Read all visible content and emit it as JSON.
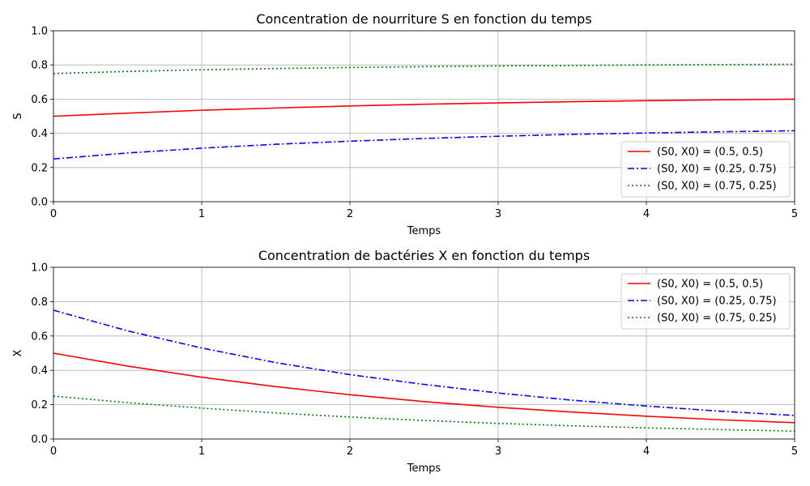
{
  "chart_data": [
    {
      "type": "line",
      "title": "Concentration de nourriture S en fonction du temps",
      "xlabel": "Temps",
      "ylabel": "S",
      "xlim": [
        0,
        5
      ],
      "ylim": [
        0,
        1
      ],
      "xticks": [
        0,
        1,
        2,
        3,
        4,
        5
      ],
      "yticks": [
        0.0,
        0.2,
        0.4,
        0.6,
        0.8,
        1.0
      ],
      "xtick_labels": [
        "0",
        "1",
        "2",
        "3",
        "4",
        "5"
      ],
      "ytick_labels": [
        "0.0",
        "0.2",
        "0.4",
        "0.6",
        "0.8",
        "1.0"
      ],
      "grid": true,
      "legend_position": "lower-right",
      "x": [
        0,
        0.5,
        1,
        1.5,
        2,
        2.5,
        3,
        3.5,
        4,
        4.5,
        5
      ],
      "series": [
        {
          "name": "(S0, X0) = (0.5, 0.5)",
          "color": "#ff0000",
          "dash": "solid",
          "values": [
            0.5,
            0.518,
            0.535,
            0.548,
            0.56,
            0.57,
            0.578,
            0.585,
            0.591,
            0.596,
            0.6
          ]
        },
        {
          "name": "(S0, X0) = (0.25, 0.75)",
          "color": "#0000ff",
          "dash": "dashdot",
          "values": [
            0.25,
            0.285,
            0.313,
            0.336,
            0.354,
            0.37,
            0.383,
            0.394,
            0.402,
            0.409,
            0.415
          ]
        },
        {
          "name": "(S0, X0) = (0.75, 0.25)",
          "color": "#008000",
          "dash": "dotted",
          "values": [
            0.75,
            0.762,
            0.772,
            0.779,
            0.785,
            0.79,
            0.794,
            0.797,
            0.8,
            0.802,
            0.804
          ]
        }
      ]
    },
    {
      "type": "line",
      "title": "Concentration de bactéries X en fonction du temps",
      "xlabel": "Temps",
      "ylabel": "X",
      "xlim": [
        0,
        5
      ],
      "ylim": [
        0,
        1
      ],
      "xticks": [
        0,
        1,
        2,
        3,
        4,
        5
      ],
      "yticks": [
        0.0,
        0.2,
        0.4,
        0.6,
        0.8,
        1.0
      ],
      "xtick_labels": [
        "0",
        "1",
        "2",
        "3",
        "4",
        "5"
      ],
      "ytick_labels": [
        "0.0",
        "0.2",
        "0.4",
        "0.6",
        "0.8",
        "1.0"
      ],
      "grid": true,
      "legend_position": "upper-right",
      "x": [
        0,
        0.5,
        1,
        1.5,
        2,
        2.5,
        3,
        3.5,
        4,
        4.5,
        5
      ],
      "series": [
        {
          "name": "(S0, X0) = (0.5, 0.5)",
          "color": "#ff0000",
          "dash": "solid",
          "values": [
            0.5,
            0.425,
            0.36,
            0.305,
            0.258,
            0.218,
            0.185,
            0.157,
            0.133,
            0.112,
            0.095
          ]
        },
        {
          "name": "(S0, X0) = (0.25, 0.75)",
          "color": "#0000ff",
          "dash": "dashdot",
          "values": [
            0.75,
            0.63,
            0.53,
            0.445,
            0.375,
            0.318,
            0.268,
            0.226,
            0.192,
            0.162,
            0.137
          ]
        },
        {
          "name": "(S0, X0) = (0.75, 0.25)",
          "color": "#008000",
          "dash": "dotted",
          "values": [
            0.25,
            0.212,
            0.18,
            0.152,
            0.128,
            0.108,
            0.091,
            0.077,
            0.065,
            0.055,
            0.046
          ]
        }
      ]
    }
  ]
}
